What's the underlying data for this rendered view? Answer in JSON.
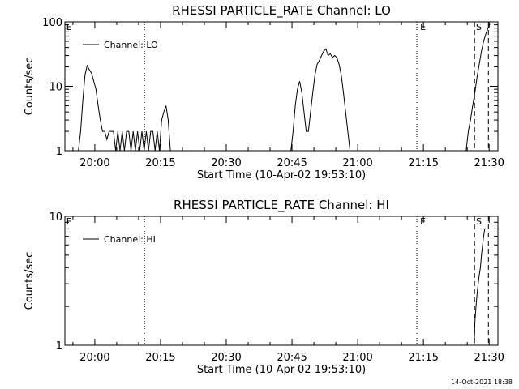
{
  "chart_data": [
    {
      "type": "line",
      "title": "RHESSI PARTICLE_RATE Channel: LO",
      "xlabel": "Start Time (10-Apr-02 19:53:10)",
      "ylabel": "Counts/sec",
      "yscale": "log",
      "ylim": [
        1,
        100
      ],
      "xlim": [
        "19:53:10",
        "21:32:00"
      ],
      "x_ticks": [
        "20:00",
        "20:15",
        "20:30",
        "20:45",
        "21:00",
        "21:15",
        "21:30"
      ],
      "y_ticks": [
        "1",
        "10",
        "100"
      ],
      "grid": false,
      "legend": "top-left",
      "series": [
        {
          "name": "Channel: LO",
          "x": [
            "19:56:15",
            "19:56:45",
            "19:57:15",
            "19:57:45",
            "19:58:15",
            "19:58:45",
            "19:59:15",
            "19:59:45",
            "20:00:15",
            "20:00:45",
            "20:01:15",
            "20:01:45",
            "20:02:15",
            "20:02:45",
            "20:03:15",
            "20:03:45",
            "20:04:15",
            "20:04:45",
            "20:05:15",
            "20:05:45",
            "20:06:15",
            "20:06:45",
            "20:07:15",
            "20:07:45",
            "20:08:15",
            "20:08:45",
            "20:09:15",
            "20:09:45",
            "20:10:15",
            "20:10:45",
            "20:11:15",
            "20:11:45",
            "20:12:15",
            "20:12:45",
            "20:13:15",
            "20:13:45",
            "20:14:15",
            "20:14:45",
            "20:15:15",
            "20:15:45",
            "20:16:15",
            "20:16:45",
            "20:17:15",
            "20:44:45",
            "20:45:15",
            "20:45:45",
            "20:46:15",
            "20:46:45",
            "20:47:15",
            "20:47:45",
            "20:48:15",
            "20:48:45",
            "20:49:15",
            "20:49:45",
            "20:50:15",
            "20:50:45",
            "20:51:15",
            "20:51:45",
            "20:52:15",
            "20:52:45",
            "20:53:15",
            "20:53:45",
            "20:54:15",
            "20:54:45",
            "20:55:15",
            "20:55:45",
            "20:56:15",
            "20:56:45",
            "20:57:15",
            "20:57:45",
            "20:58:15",
            "20:58:45",
            "20:59:15",
            "20:59:45",
            "21:00:15",
            "21:24:45",
            "21:25:15",
            "21:25:45",
            "21:26:15",
            "21:26:45",
            "21:27:15",
            "21:27:45",
            "21:28:15",
            "21:28:45",
            "21:29:15",
            "21:29:45",
            "21:30:15"
          ],
          "values": [
            1,
            2,
            6,
            15,
            21,
            18,
            16,
            12,
            9,
            5,
            3,
            2,
            2,
            1.5,
            2,
            2,
            2,
            1,
            2,
            1,
            2,
            1,
            2,
            2,
            1,
            2,
            1,
            2,
            1,
            2,
            1,
            2,
            1,
            2,
            2,
            1,
            2,
            1,
            3,
            4,
            5,
            3,
            1,
            1,
            2,
            5,
            9,
            12,
            8,
            4,
            2,
            2,
            4,
            8,
            15,
            22,
            25,
            30,
            35,
            38,
            30,
            32,
            28,
            30,
            28,
            22,
            15,
            8,
            4,
            2,
            1,
            1,
            1,
            1,
            1,
            1,
            2,
            3,
            5,
            8,
            14,
            22,
            35,
            50,
            65,
            80,
            95
          ]
        }
      ],
      "annotations": [
        "E",
        "E",
        "S"
      ]
    },
    {
      "type": "line",
      "title": "RHESSI PARTICLE_RATE Channel: HI",
      "xlabel": "Start Time (10-Apr-02 19:53:10)",
      "ylabel": "Counts/sec",
      "yscale": "log",
      "ylim": [
        1,
        10
      ],
      "xlim": [
        "19:53:10",
        "21:32:00"
      ],
      "x_ticks": [
        "20:00",
        "20:15",
        "20:30",
        "20:45",
        "21:00",
        "21:15",
        "21:30"
      ],
      "y_ticks": [
        "1",
        "10"
      ],
      "grid": false,
      "legend": "top-left",
      "series": [
        {
          "name": "Channel: HI",
          "x": [
            "21:26:35",
            "21:26:45",
            "21:27:00",
            "21:27:15",
            "21:27:30",
            "21:27:45",
            "21:28:00",
            "21:28:15",
            "21:28:30",
            "21:28:45",
            "21:29:00",
            "21:29:15"
          ],
          "values": [
            1,
            1.5,
            2,
            2.5,
            3,
            3.5,
            4,
            5,
            6,
            7,
            8,
            8
          ]
        }
      ],
      "annotations": [
        "E",
        "E",
        "S"
      ]
    }
  ],
  "timestamp": "14-Oct-2021 18:38"
}
